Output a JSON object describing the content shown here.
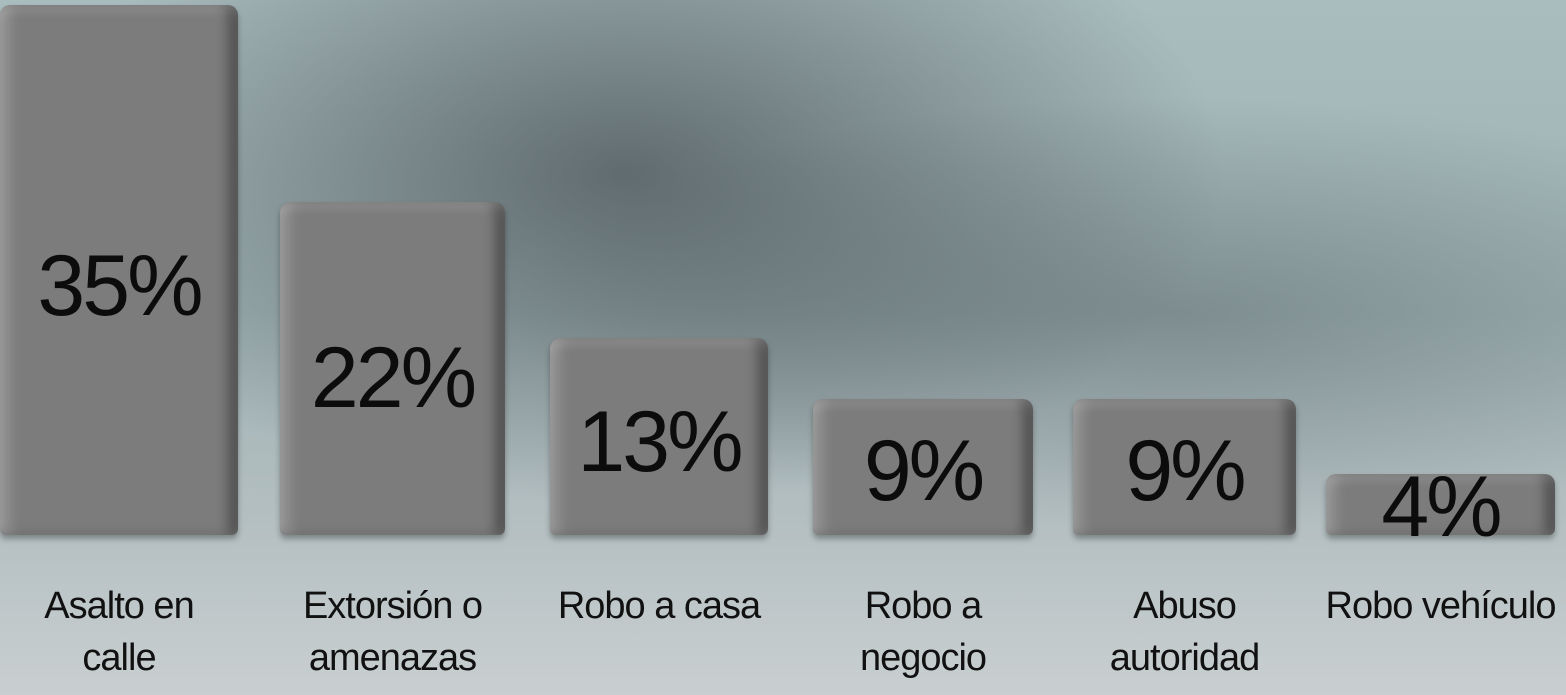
{
  "chart_data": {
    "type": "bar",
    "categories": [
      "Asalto en calle",
      "Extorsión o amenazas",
      "Robo a casa",
      "Robo a negocio",
      "Abuso autoridad",
      "Robo vehículo"
    ],
    "values": [
      35,
      22,
      13,
      9,
      9,
      4
    ],
    "value_labels": [
      "35%",
      "22%",
      "13%",
      "9%",
      "9%",
      "4%"
    ],
    "color": "#7c7c7c"
  }
}
